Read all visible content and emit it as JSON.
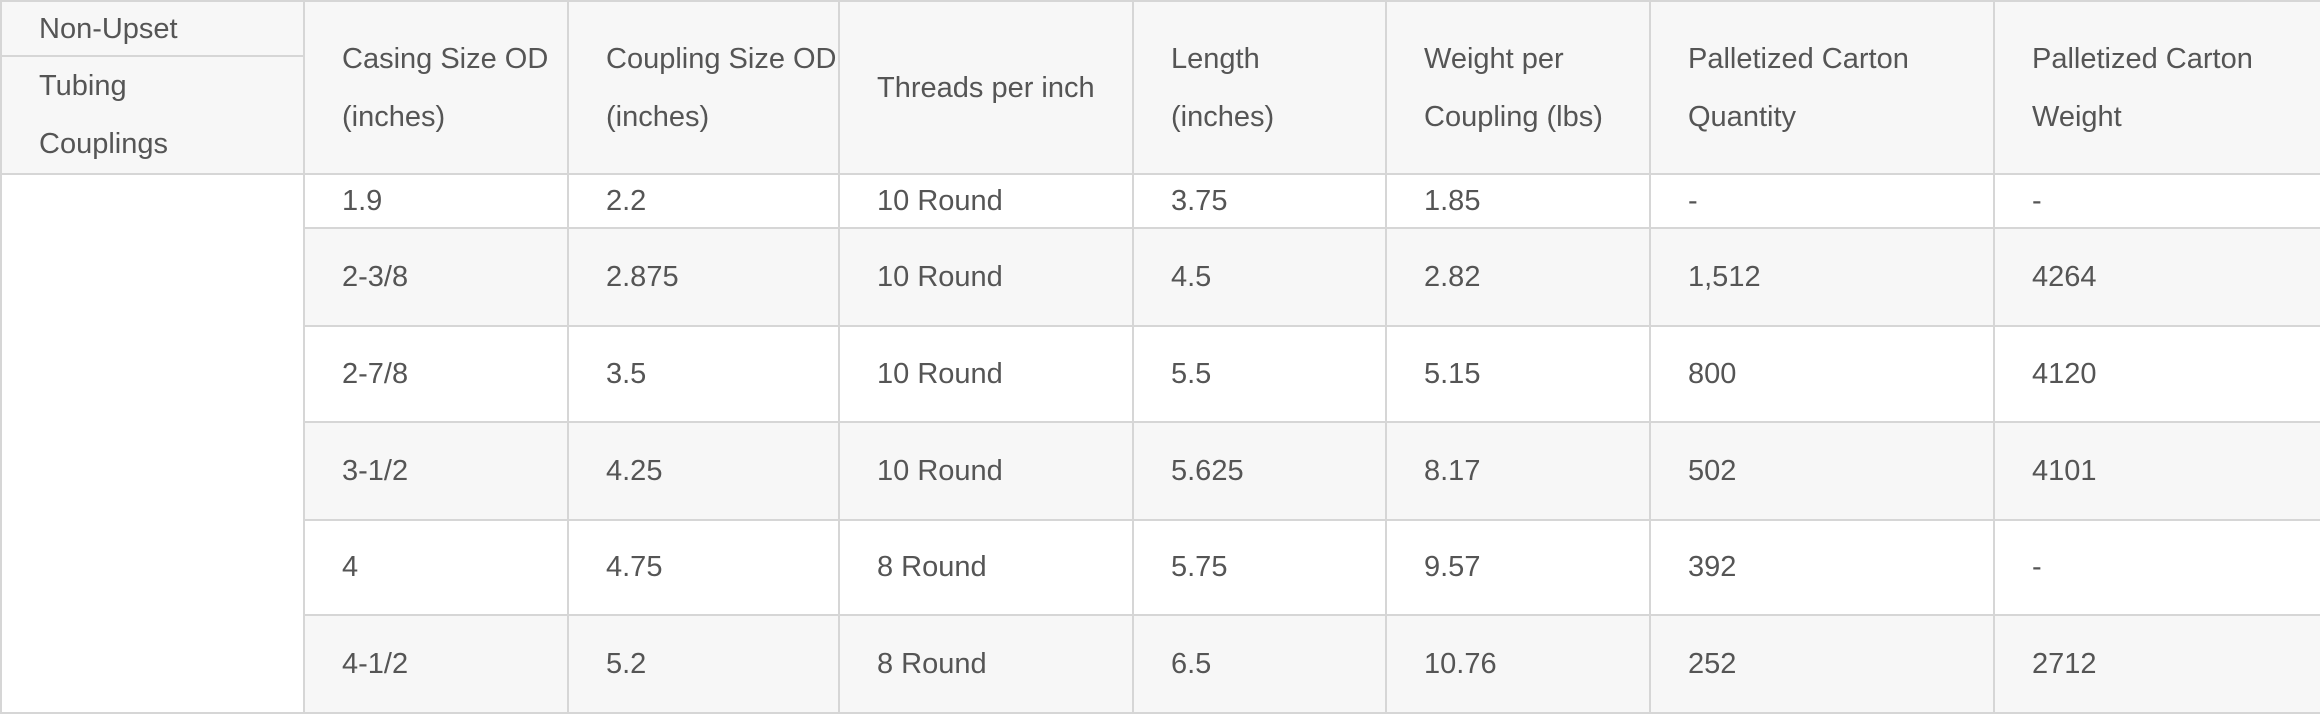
{
  "table": {
    "corner_top": "Non-Upset",
    "corner_bottom": "Tubing Couplings",
    "headers": [
      "Casing Size OD (inches)",
      "Coupling Size OD (inches)",
      "Threads per inch",
      "Length (inches)",
      "Weight per Coupling (lbs)",
      "Palletized Carton Quantity",
      "Palletized Carton Weight"
    ],
    "rows": [
      [
        "1.9",
        "2.2",
        "10 Round",
        "3.75",
        "1.85",
        "-",
        "-"
      ],
      [
        "2-3/8",
        "2.875",
        "10 Round",
        "4.5",
        "2.82",
        "1,512",
        "4264"
      ],
      [
        "2-7/8",
        "3.5",
        "10 Round",
        "5.5",
        "5.15",
        "800",
        "4120"
      ],
      [
        "3-1/2",
        "4.25",
        "10 Round",
        "5.625",
        "8.17",
        "502",
        "4101"
      ],
      [
        "4",
        "4.75",
        "8 Round",
        "5.75",
        "9.57",
        "392",
        "-"
      ],
      [
        "4-1/2",
        "5.2",
        "8 Round",
        "6.5",
        "10.76",
        "252",
        "2712"
      ]
    ]
  }
}
